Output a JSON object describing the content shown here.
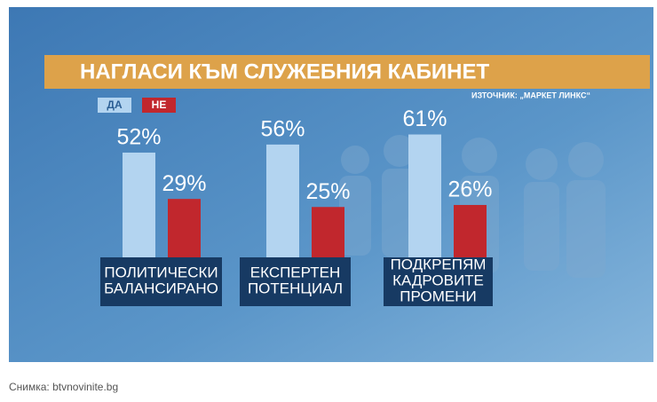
{
  "chart_data": {
    "type": "bar",
    "title": "НАГЛАСИ КЪМ СЛУЖЕБНИЯ КАБИНЕТ",
    "source": "ИЗТОЧНИК: „МАРКЕТ ЛИНКС“",
    "categories": [
      "ПОЛИТИЧЕСКИ БАЛАНСИРАНО",
      "ЕКСПЕРТЕН ПОТЕНЦИАЛ",
      "ПОДКРЕПЯМ КАДРОВИТЕ ПРОМЕНИ"
    ],
    "series": [
      {
        "name": "ДА",
        "color": "#b3d4f0",
        "values": [
          52,
          56,
          61
        ],
        "value_labels": [
          "52%",
          "56%",
          "61%"
        ]
      },
      {
        "name": "НЕ",
        "color": "#c1272d",
        "values": [
          29,
          25,
          26
        ],
        "value_labels": [
          "29%",
          "25%",
          "26%"
        ]
      }
    ]
  },
  "caption": "Снимка: btvnovinite.bg"
}
